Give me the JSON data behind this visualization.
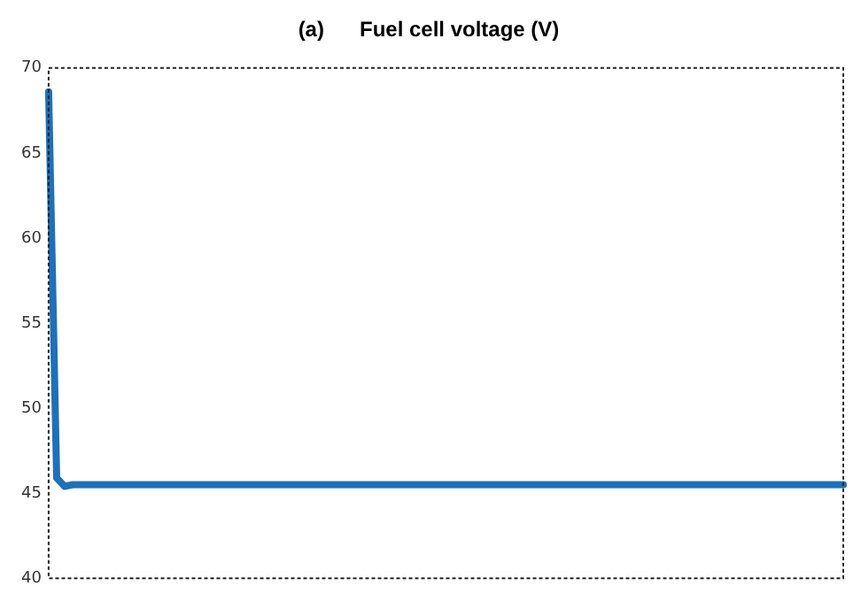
{
  "chart_data": {
    "type": "line",
    "title": "(a)      Fuel cell voltage (V)",
    "categories": [
      null,
      null,
      null,
      null,
      null,
      null,
      null,
      null,
      null,
      null,
      null,
      null,
      null,
      null,
      null,
      null,
      null,
      null,
      null,
      null,
      null,
      null,
      null,
      null,
      null,
      null,
      null,
      null,
      null,
      null,
      null,
      null,
      null,
      null,
      null,
      null,
      null,
      null,
      null,
      null,
      null,
      null,
      null,
      null,
      null,
      null,
      null,
      null,
      null,
      null,
      null,
      null,
      null,
      null,
      null,
      null,
      null,
      null,
      null,
      null,
      null,
      null,
      null,
      null,
      null,
      null,
      null,
      null,
      null,
      null,
      null,
      null,
      null,
      null,
      null,
      null,
      null,
      null,
      null,
      null,
      null,
      null,
      null,
      null,
      null,
      null,
      null,
      null,
      null,
      null,
      null,
      null,
      null,
      null,
      null,
      null,
      null,
      null,
      null,
      null
    ],
    "series": [
      {
        "color": "#1f70b8",
        "values": [
          68.6,
          45.9,
          45.4,
          45.5,
          45.5,
          45.5,
          45.5,
          45.5,
          45.5,
          45.5,
          45.5,
          45.5,
          45.5,
          45.5,
          45.5,
          45.5,
          45.5,
          45.5,
          45.5,
          45.5,
          45.5,
          45.5,
          45.5,
          45.5,
          45.5,
          45.5,
          45.5,
          45.5,
          45.5,
          45.5,
          45.5,
          45.5,
          45.5,
          45.5,
          45.5,
          45.5,
          45.5,
          45.5,
          45.5,
          45.5,
          45.5,
          45.5,
          45.5,
          45.5,
          45.5,
          45.5,
          45.5,
          45.5,
          45.5,
          45.5,
          45.5,
          45.5,
          45.5,
          45.5,
          45.5,
          45.5,
          45.5,
          45.5,
          45.5,
          45.5,
          45.5,
          45.5,
          45.5,
          45.5,
          45.5,
          45.5,
          45.5,
          45.5,
          45.5,
          45.5,
          45.5,
          45.5,
          45.5,
          45.5,
          45.5,
          45.5,
          45.5,
          45.5,
          45.5,
          45.5,
          45.5,
          45.5,
          45.5,
          45.5,
          45.5,
          45.5,
          45.5,
          45.5,
          45.5,
          45.5,
          45.5,
          45.5,
          45.5,
          45.5,
          45.5,
          45.5,
          45.5,
          45.5,
          45.5,
          45.5
        ]
      }
    ],
    "ylim": [
      40,
      70
    ],
    "yticks": [
      40,
      45,
      50,
      55,
      60,
      65,
      70
    ],
    "tick_labels": "y",
    "grid": false,
    "legend": false,
    "marker": "none",
    "line_style": "solid"
  }
}
